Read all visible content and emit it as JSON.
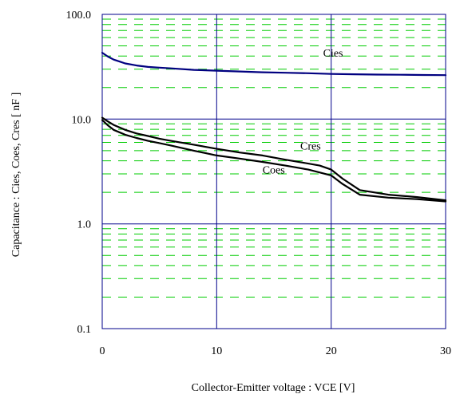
{
  "chart_data": {
    "type": "line",
    "title": "",
    "xlabel": "Collector-Emitter voltage : VCE [V]",
    "ylabel": "Capacitance  :  Cies, Coes, Cres  [ nF ]",
    "x_scale": "linear",
    "y_scale": "log",
    "xlim": [
      0,
      30
    ],
    "ylim": [
      0.1,
      100
    ],
    "x_ticks": [
      0,
      10,
      20,
      30
    ],
    "x_tick_labels": [
      "0",
      "10",
      "20",
      "30"
    ],
    "y_ticks": [
      0.1,
      1,
      10,
      100
    ],
    "y_tick_labels": [
      "0.1",
      "1.0",
      "10.0",
      "100.0"
    ],
    "grid": {
      "major": true,
      "major_color": "#00008B",
      "minor": true,
      "minor_color": "#00CC00",
      "minor_style": "dashed"
    },
    "legend": "none",
    "series": [
      {
        "name": "Cies",
        "color": "#000080",
        "x": [
          0,
          0.5,
          1,
          1.5,
          2,
          3,
          4,
          5,
          6,
          8,
          10,
          12,
          14,
          16,
          18,
          20,
          22,
          24,
          26,
          28,
          30
        ],
        "y": [
          43,
          39.5,
          37,
          35.5,
          34,
          32.5,
          31.5,
          31,
          30.5,
          29.5,
          29,
          28.5,
          28,
          27.7,
          27.4,
          27,
          26.8,
          26.6,
          26.5,
          26.4,
          26.3
        ]
      },
      {
        "name": "Cres",
        "color": "#000000",
        "x": [
          0,
          0.5,
          1,
          2,
          3,
          4,
          5,
          6,
          8,
          10,
          12,
          14,
          16,
          17.5,
          19,
          20,
          21,
          22.5,
          25,
          27.5,
          30
        ],
        "y": [
          10.3,
          9.5,
          8.8,
          7.9,
          7.3,
          6.9,
          6.5,
          6.2,
          5.7,
          5.2,
          4.8,
          4.5,
          4.1,
          3.85,
          3.6,
          3.3,
          2.7,
          2.1,
          1.9,
          1.8,
          1.68
        ]
      },
      {
        "name": "Coes",
        "color": "#000000",
        "x": [
          0,
          0.5,
          1,
          2,
          3,
          4,
          5,
          6,
          8,
          10,
          12,
          14,
          16,
          18,
          20,
          21,
          22.5,
          25,
          27.5,
          30
        ],
        "y": [
          9.8,
          8.7,
          7.9,
          7.1,
          6.6,
          6.2,
          5.9,
          5.6,
          5.0,
          4.5,
          4.2,
          3.9,
          3.6,
          3.3,
          2.9,
          2.4,
          1.9,
          1.78,
          1.72,
          1.64
        ]
      }
    ],
    "annotations": [
      {
        "text": "Cies",
        "x": 19.3,
        "y": 43
      },
      {
        "text": "Cres",
        "x": 17.3,
        "y": 5.6
      },
      {
        "text": "Coes",
        "x": 14,
        "y": 3.3
      }
    ]
  }
}
